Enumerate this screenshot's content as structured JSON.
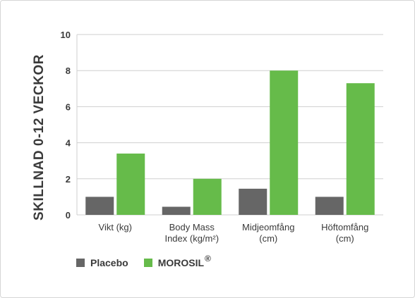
{
  "chart_data": {
    "type": "bar",
    "ylabel": "SKILLNAD 0-12 VECKOR",
    "ylim": [
      0,
      10
    ],
    "yticks": [
      "0",
      "2",
      "4",
      "6",
      "8",
      "10"
    ],
    "categories": [
      [
        "Vikt (kg)"
      ],
      [
        "Body Mass",
        "Index (kg/m²)"
      ],
      [
        "Midjeomfång",
        "(cm)"
      ],
      [
        "Höftomfång",
        "(cm)"
      ]
    ],
    "series": [
      {
        "name": "Placebo",
        "color": "#666666",
        "values": [
          1.0,
          0.45,
          1.45,
          1.0
        ]
      },
      {
        "name": "MOROSIL",
        "color": "#66bb4a",
        "values": [
          3.4,
          2.0,
          8.0,
          7.3
        ]
      }
    ],
    "grid": true,
    "legend_position": "bottom-left"
  },
  "legend": {
    "placebo_label": "Placebo",
    "morosil_label": "MOROSIL",
    "morosil_mark": "®"
  }
}
